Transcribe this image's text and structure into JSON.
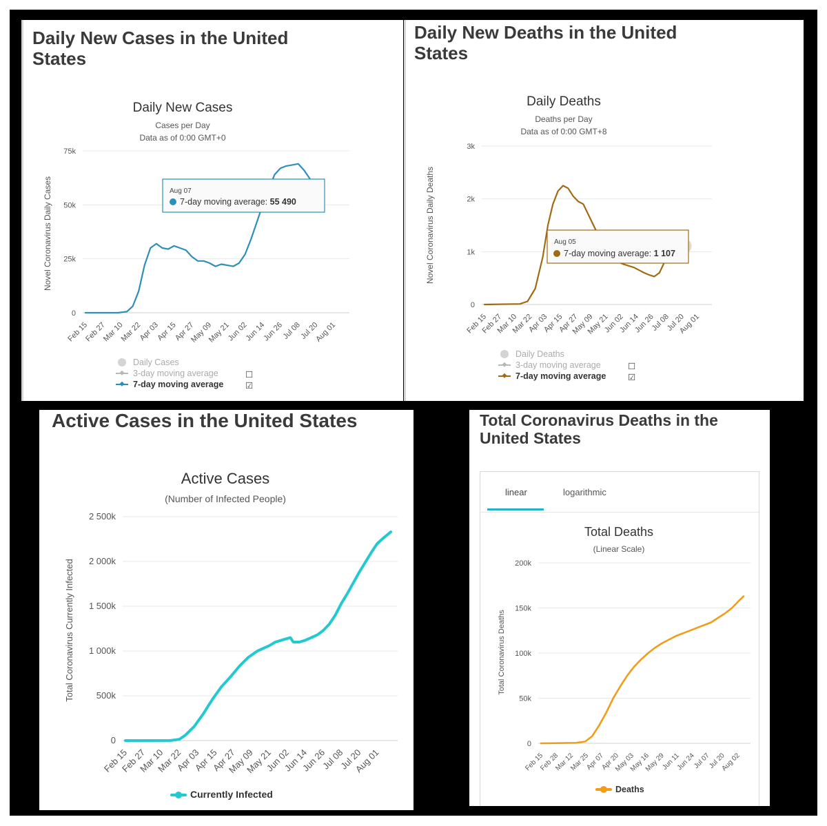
{
  "panels": {
    "cases": {
      "heading": "Daily New Cases in the United States"
    },
    "deaths": {
      "heading": "Daily New Deaths in the United States"
    },
    "active": {
      "heading": "Active Cases in the United States"
    },
    "total": {
      "heading": "Total Coronavirus Deaths in the United States"
    }
  },
  "tabs": {
    "linear": "linear",
    "log": "logarithmic"
  },
  "colors": {
    "cases": "#2b8fb8",
    "deaths": "#a06a14",
    "active": "#22c9cf",
    "total": "#f09d1a",
    "legend_gray": "#b8b8b8",
    "tab_active": "#22b3c7"
  },
  "chart_data": [
    {
      "id": "cases",
      "type": "line",
      "title": "Daily New Cases",
      "subtitle": "Cases per Day",
      "subtitle2": "Data as of 0:00 GMT+0",
      "ylabel": "Novel Coronavirus Daily Cases",
      "ylim": [
        0,
        75000
      ],
      "yticks": [
        {
          "v": 0,
          "l": "0"
        },
        {
          "v": 25000,
          "l": "25k"
        },
        {
          "v": 50000,
          "l": "50k"
        },
        {
          "v": 75000,
          "l": "75k"
        }
      ],
      "grid": true,
      "x_start": "Feb 15",
      "x_end": "Aug 07",
      "x_range_days": [
        0,
        174
      ],
      "xtick_labels": [
        "Feb 15",
        "Feb 27",
        "Mar 10",
        "Mar 22",
        "Apr 03",
        "Apr 15",
        "Apr 27",
        "May 09",
        "May 21",
        "Jun 02",
        "Jun 14",
        "Jun 26",
        "Jul 08",
        "Jul 20",
        "Aug 01"
      ],
      "xtick_step_days": 12,
      "series": [
        {
          "name": "7-day moving average",
          "points": [
            [
              0,
              0
            ],
            [
              22,
              0
            ],
            [
              28,
              500
            ],
            [
              32,
              3000
            ],
            [
              36,
              10000
            ],
            [
              40,
              22000
            ],
            [
              44,
              30000
            ],
            [
              48,
              32000
            ],
            [
              52,
              30000
            ],
            [
              56,
              29500
            ],
            [
              60,
              31000
            ],
            [
              64,
              30000
            ],
            [
              68,
              29000
            ],
            [
              72,
              26000
            ],
            [
              76,
              24000
            ],
            [
              80,
              24000
            ],
            [
              84,
              23000
            ],
            [
              88,
              21500
            ],
            [
              92,
              22500
            ],
            [
              96,
              22000
            ],
            [
              100,
              21500
            ],
            [
              104,
              23000
            ],
            [
              108,
              27000
            ],
            [
              112,
              34000
            ],
            [
              116,
              42000
            ],
            [
              120,
              50000
            ],
            [
              124,
              57000
            ],
            [
              128,
              64000
            ],
            [
              132,
              67000
            ],
            [
              136,
              68000
            ],
            [
              140,
              68500
            ],
            [
              144,
              69000
            ],
            [
              148,
              66000
            ],
            [
              152,
              62000
            ],
            [
              156,
              55490
            ]
          ]
        }
      ],
      "legend": [
        {
          "label": "Daily Cases",
          "checkbox": "",
          "active": false
        },
        {
          "label": "3-day moving average",
          "checkbox": "☐",
          "active": false
        },
        {
          "label": "7-day moving average",
          "checkbox": "☑",
          "active": true
        }
      ],
      "tooltip": {
        "date": "Aug 07",
        "label": "7-day moving average: ",
        "value": "55 490"
      }
    },
    {
      "id": "deaths",
      "type": "line",
      "title": "Daily Deaths",
      "subtitle": "Deaths per Day",
      "subtitle2": "Data as of 0:00 GMT+8",
      "ylabel": "Novel Coronavirus Daily Deaths",
      "ylim": [
        0,
        3000
      ],
      "yticks": [
        {
          "v": 0,
          "l": "0"
        },
        {
          "v": 1000,
          "l": "1k"
        },
        {
          "v": 2000,
          "l": "2k"
        },
        {
          "v": 3000,
          "l": "3k"
        }
      ],
      "grid": true,
      "x_start": "Feb 15",
      "x_end": "Aug 05",
      "x_range_days": [
        0,
        174
      ],
      "xtick_labels": [
        "Feb 15",
        "Feb 27",
        "Mar 10",
        "Mar 22",
        "Apr 03",
        "Apr 15",
        "Apr 27",
        "May 09",
        "May 21",
        "Jun 02",
        "Jun 14",
        "Jun 26",
        "Jul 08",
        "Jul 20",
        "Aug 01"
      ],
      "xtick_step_days": 12,
      "series": [
        {
          "name": "7-day moving average",
          "points": [
            [
              0,
              0
            ],
            [
              28,
              10
            ],
            [
              34,
              60
            ],
            [
              40,
              300
            ],
            [
              46,
              900
            ],
            [
              50,
              1500
            ],
            [
              54,
              1900
            ],
            [
              58,
              2150
            ],
            [
              62,
              2250
            ],
            [
              66,
              2200
            ],
            [
              70,
              2050
            ],
            [
              74,
              1950
            ],
            [
              78,
              1900
            ],
            [
              82,
              1700
            ],
            [
              86,
              1500
            ],
            [
              90,
              1300
            ],
            [
              94,
              1150
            ],
            [
              98,
              1000
            ],
            [
              102,
              880
            ],
            [
              106,
              800
            ],
            [
              110,
              760
            ],
            [
              114,
              730
            ],
            [
              118,
              700
            ],
            [
              122,
              650
            ],
            [
              126,
              600
            ],
            [
              130,
              560
            ],
            [
              134,
              530
            ],
            [
              138,
              600
            ],
            [
              142,
              800
            ],
            [
              146,
              950
            ],
            [
              150,
              1050
            ],
            [
              154,
              1100
            ],
            [
              158,
              1107
            ]
          ]
        }
      ],
      "legend": [
        {
          "label": "Daily Deaths",
          "checkbox": "",
          "active": false
        },
        {
          "label": "3-day moving average",
          "checkbox": "☐",
          "active": false
        },
        {
          "label": "7-day moving average",
          "checkbox": "☑",
          "active": true
        }
      ],
      "tooltip": {
        "date": "Aug 05",
        "label": "7-day moving average: ",
        "value": "1 107"
      }
    },
    {
      "id": "active",
      "type": "line",
      "title": "Active Cases",
      "subtitle": "(Number of Infected People)",
      "subtitle2": "",
      "ylabel": "Total Coronavirus Currently Infected",
      "ylim": [
        0,
        2500000
      ],
      "yticks": [
        {
          "v": 0,
          "l": "0"
        },
        {
          "v": 500000,
          "l": "500k"
        },
        {
          "v": 1000000,
          "l": "1 000k"
        },
        {
          "v": 1500000,
          "l": "1 500k"
        },
        {
          "v": 2000000,
          "l": "2 000k"
        },
        {
          "v": 2500000,
          "l": "2 500k"
        }
      ],
      "grid": true,
      "x_start": "Feb 15",
      "x_end": "Aug 07",
      "x_range_days": [
        0,
        177
      ],
      "xtick_labels": [
        "Feb 15",
        "Feb 27",
        "Mar 10",
        "Mar 22",
        "Apr 03",
        "Apr 15",
        "Apr 27",
        "May 09",
        "May 21",
        "Jun 02",
        "Jun 14",
        "Jun 26",
        "Jul 08",
        "Jul 20",
        "Aug 01"
      ],
      "xtick_step_days": 12,
      "series": [
        {
          "name": "Currently Infected",
          "points": [
            [
              0,
              0
            ],
            [
              30,
              1000
            ],
            [
              36,
              15000
            ],
            [
              40,
              60000
            ],
            [
              46,
              160000
            ],
            [
              52,
              300000
            ],
            [
              58,
              460000
            ],
            [
              64,
              600000
            ],
            [
              70,
              710000
            ],
            [
              76,
              830000
            ],
            [
              82,
              930000
            ],
            [
              88,
              1000000
            ],
            [
              92,
              1030000
            ],
            [
              96,
              1060000
            ],
            [
              100,
              1100000
            ],
            [
              104,
              1120000
            ],
            [
              108,
              1140000
            ],
            [
              110,
              1150000
            ],
            [
              112,
              1100000
            ],
            [
              116,
              1100000
            ],
            [
              120,
              1120000
            ],
            [
              124,
              1150000
            ],
            [
              128,
              1180000
            ],
            [
              132,
              1230000
            ],
            [
              136,
              1300000
            ],
            [
              140,
              1400000
            ],
            [
              144,
              1530000
            ],
            [
              148,
              1640000
            ],
            [
              152,
              1760000
            ],
            [
              156,
              1880000
            ],
            [
              160,
              1990000
            ],
            [
              164,
              2100000
            ],
            [
              168,
              2200000
            ],
            [
              172,
              2260000
            ],
            [
              177,
              2330000
            ]
          ]
        }
      ],
      "legend": [
        {
          "label": "Currently Infected",
          "checkbox": "",
          "active": true
        }
      ]
    },
    {
      "id": "total",
      "type": "line",
      "title": "Total Deaths",
      "subtitle": "(Linear Scale)",
      "subtitle2": "",
      "ylabel": "Total Coronavirus Deaths",
      "ylim": [
        0,
        200000
      ],
      "yticks": [
        {
          "v": 0,
          "l": "0"
        },
        {
          "v": 50000,
          "l": "50k"
        },
        {
          "v": 100000,
          "l": "100k"
        },
        {
          "v": 150000,
          "l": "150k"
        },
        {
          "v": 200000,
          "l": "200k"
        }
      ],
      "grid": true,
      "x_start": "Feb 15",
      "x_end": "Aug 07",
      "x_range_days": [
        0,
        174
      ],
      "xtick_labels": [
        "Feb 15",
        "Feb 28",
        "Mar 12",
        "Mar 25",
        "Apr 07",
        "Apr 20",
        "May 03",
        "May 16",
        "May 29",
        "Jun 11",
        "Jun 24",
        "Jul 07",
        "Jul 20",
        "Aug 02"
      ],
      "xtick_step_days": 13,
      "series": [
        {
          "name": "Deaths",
          "points": [
            [
              0,
              0
            ],
            [
              30,
              500
            ],
            [
              38,
              2000
            ],
            [
              44,
              8000
            ],
            [
              50,
              20000
            ],
            [
              56,
              34000
            ],
            [
              62,
              50000
            ],
            [
              68,
              63000
            ],
            [
              74,
              75000
            ],
            [
              80,
              85000
            ],
            [
              86,
              93000
            ],
            [
              92,
              100000
            ],
            [
              98,
              106000
            ],
            [
              104,
              111000
            ],
            [
              110,
              115000
            ],
            [
              116,
              119000
            ],
            [
              122,
              122000
            ],
            [
              128,
              125000
            ],
            [
              134,
              128000
            ],
            [
              140,
              131000
            ],
            [
              146,
              134000
            ],
            [
              152,
              139000
            ],
            [
              158,
              144000
            ],
            [
              164,
              150000
            ],
            [
              170,
              158000
            ],
            [
              174,
              163000
            ]
          ]
        }
      ],
      "legend": [
        {
          "label": "Deaths",
          "checkbox": "",
          "active": true
        }
      ]
    }
  ]
}
